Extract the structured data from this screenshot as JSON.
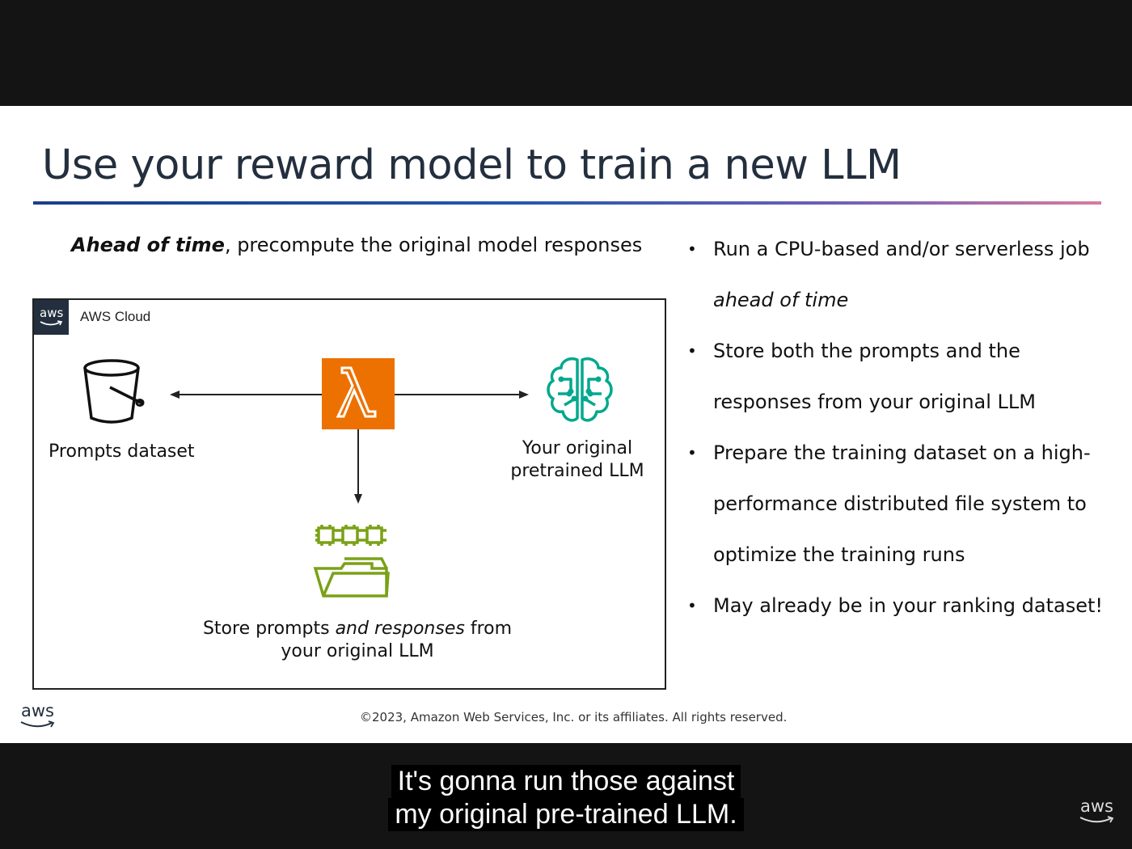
{
  "slide": {
    "title": "Use your reward model to train a new LLM",
    "subtitle_emphasis": "Ahead of time",
    "subtitle_rest": ", precompute the original model responses",
    "diagram": {
      "aws_badge": "aws",
      "cloud_label": "AWS Cloud",
      "prompts_label": "Prompts dataset",
      "llm_label_line1": "Your original",
      "llm_label_line2": "pretrained LLM",
      "store_line1_a": "Store prompts ",
      "store_line1_em": "and responses",
      "store_line1_b": " from",
      "store_line2": "your original LLM"
    },
    "bullets": {
      "b1_text": "Run a CPU-based and/or serverless job",
      "b1_em": "ahead of time",
      "b2_line1": "Store both the prompts and the",
      "b2_line2": "responses from your original LLM",
      "b3_line1": "Prepare the training dataset on a high-",
      "b3_line2": "performance distributed file system to",
      "b3_line3": "optimize the training runs",
      "b4_text": "May already be in your ranking dataset!",
      "bullet_char": "•"
    },
    "footer_logo": "aws",
    "copyright": "©2023, Amazon Web Services, Inc. or its affiliates. All rights reserved."
  },
  "caption": {
    "line1": "It's gonna run those against",
    "line2": "my original pre-trained LLM."
  },
  "corner_logo": "aws",
  "colors": {
    "lambda_orange": "#ed7100",
    "sagemaker_green": "#01a88d",
    "storage_green": "#7aa116",
    "aws_dark": "#232f3e"
  },
  "icons": [
    "bucket-icon",
    "lambda-icon",
    "brain-icon",
    "folder-chips-icon",
    "aws-logo-icon"
  ]
}
